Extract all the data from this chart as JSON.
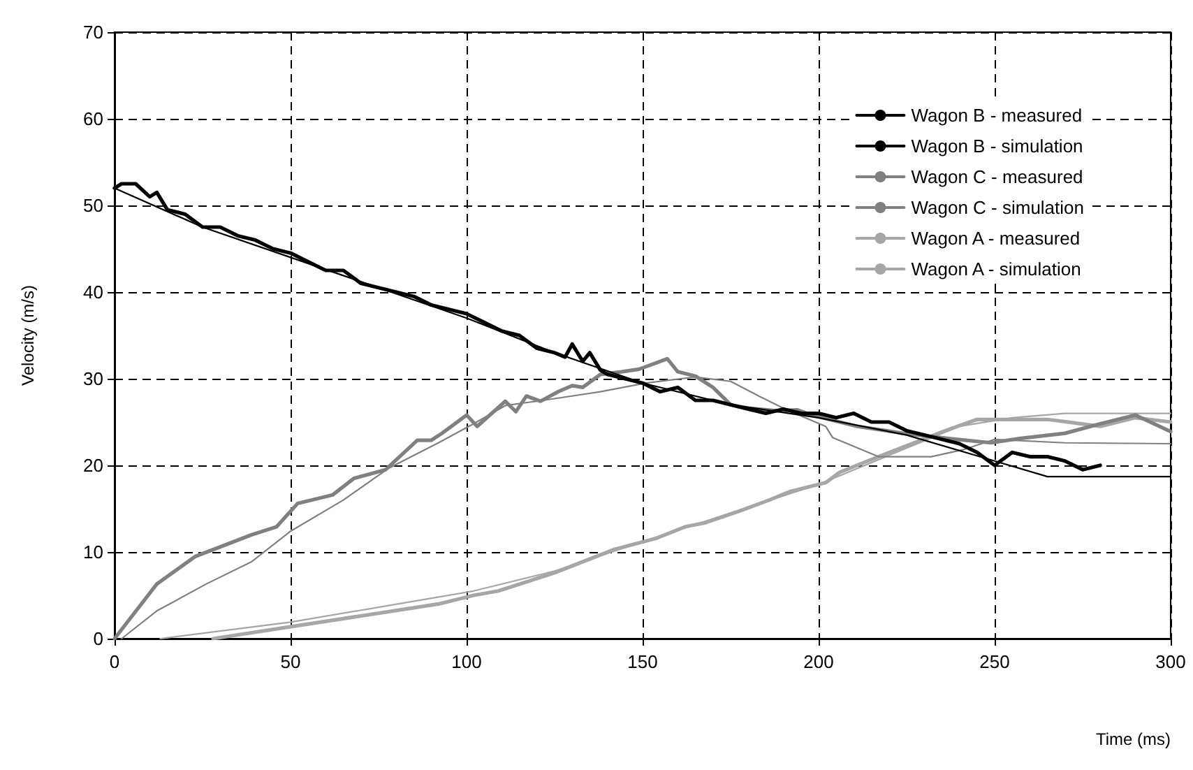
{
  "chart_data": {
    "type": "line",
    "xlabel": "Time (ms)",
    "ylabel": "Velocity (m/s)",
    "xlim": [
      0,
      300
    ],
    "xticks": [
      0,
      50,
      100,
      150,
      200,
      250,
      300
    ],
    "ylim": [
      0,
      70
    ],
    "yticks": [
      0,
      10,
      20,
      30,
      40,
      50,
      60,
      70
    ],
    "grid": true,
    "legend": "top right",
    "marker": "none",
    "line_style": "solid",
    "series": [
      {
        "name": "Wagon B - measured",
        "color": "#000000",
        "x": [
          0,
          2,
          6,
          10,
          12,
          15,
          20,
          25,
          30,
          35,
          40,
          45,
          50,
          55,
          60,
          65,
          70,
          75,
          80,
          85,
          90,
          95,
          100,
          105,
          110,
          115,
          120,
          125,
          128,
          130,
          133,
          135,
          138,
          140,
          145,
          150,
          155,
          160,
          165,
          170,
          175,
          180,
          185,
          190,
          195,
          200,
          205,
          210,
          215,
          220,
          225,
          230,
          235,
          240,
          245,
          250,
          255,
          260,
          265,
          270,
          275,
          280
        ],
        "values": [
          52,
          52.5,
          52.5,
          51,
          51.5,
          49.5,
          49,
          47.5,
          47.5,
          46.5,
          46,
          45,
          44.5,
          43.5,
          42.5,
          42.5,
          41,
          40.5,
          40,
          39.5,
          38.5,
          38,
          37.5,
          36.5,
          35.5,
          35,
          33.5,
          33,
          32.5,
          34,
          32,
          33,
          31,
          30.5,
          30,
          29.5,
          28.5,
          29,
          27.5,
          27.5,
          27,
          26.5,
          26,
          26.5,
          26,
          26,
          25.5,
          26,
          25,
          25,
          24,
          23.5,
          23,
          22.5,
          21.5,
          20,
          21.5,
          21,
          21,
          20.5,
          19.5,
          20
        ]
      },
      {
        "name": "Wagon B - simulation",
        "color": "#000000",
        "x": [
          0,
          25,
          50,
          75,
          100,
          125,
          150,
          175,
          200,
          225,
          250,
          265,
          300
        ],
        "values": [
          52,
          47.5,
          44,
          40.5,
          37,
          33,
          29.5,
          27,
          25.5,
          23.5,
          20.5,
          18.7,
          18.7
        ]
      },
      {
        "name": "Wagon C - measured",
        "color": "#808080",
        "x": [
          0,
          12,
          23,
          39,
          46,
          52,
          62,
          68,
          77,
          86,
          90,
          93,
          100,
          103,
          111,
          114,
          117,
          121,
          126,
          130,
          133,
          138,
          144,
          149,
          157,
          160,
          165,
          170,
          175,
          180,
          188,
          194,
          198,
          211,
          224,
          237,
          249,
          257,
          270,
          280,
          290,
          300
        ],
        "values": [
          0,
          6.3,
          9.5,
          12,
          12.9,
          15.6,
          16.6,
          18.5,
          19.5,
          22.9,
          22.9,
          23.7,
          25.8,
          24.5,
          27.4,
          26.2,
          28,
          27.4,
          28.5,
          29.2,
          29,
          30.5,
          30.8,
          31.1,
          32.3,
          30.8,
          30.3,
          29,
          27,
          26.6,
          26.3,
          26.4,
          25.8,
          24.5,
          23.7,
          23.1,
          22.6,
          23.1,
          23.7,
          24.8,
          25.8,
          23.9
        ]
      },
      {
        "name": "Wagon C - simulation",
        "color": "#808080",
        "x": [
          2,
          12,
          26,
          39,
          50,
          65,
          78,
          92,
          102,
          111,
          125,
          138,
          151,
          165,
          175,
          183,
          191,
          202,
          204,
          217,
          232,
          241,
          250,
          270,
          300
        ],
        "values": [
          0,
          3.2,
          6.3,
          8.9,
          12.4,
          16,
          19.7,
          22.6,
          24.8,
          26.9,
          27.7,
          28.5,
          29.5,
          30.2,
          29.7,
          28,
          26.4,
          24.5,
          23.2,
          21,
          21,
          21.8,
          23,
          22.6,
          22.5
        ]
      },
      {
        "name": "Wagon A - measured",
        "color": "#a6a6a6",
        "x": [
          28,
          92,
          102,
          109,
          125,
          142,
          154,
          162,
          168,
          178,
          186,
          192,
          202,
          206,
          217,
          224,
          236,
          245,
          265,
          280,
          290,
          300
        ],
        "values": [
          0,
          4,
          5,
          5.5,
          7.6,
          10.3,
          11.6,
          12.9,
          13.4,
          14.8,
          16,
          17,
          18,
          19.2,
          21,
          22.1,
          24,
          25.3,
          25.3,
          24.5,
          25.5,
          25
        ]
      },
      {
        "name": "Wagon A - simulation",
        "color": "#a6a6a6",
        "x": [
          13,
          50,
          102,
          125,
          150,
          175,
          200,
          225,
          240,
          255,
          270,
          300
        ],
        "values": [
          0,
          1.9,
          5.5,
          7.8,
          11.2,
          14.5,
          17.8,
          22,
          24.5,
          25.5,
          26,
          26
        ]
      }
    ]
  }
}
